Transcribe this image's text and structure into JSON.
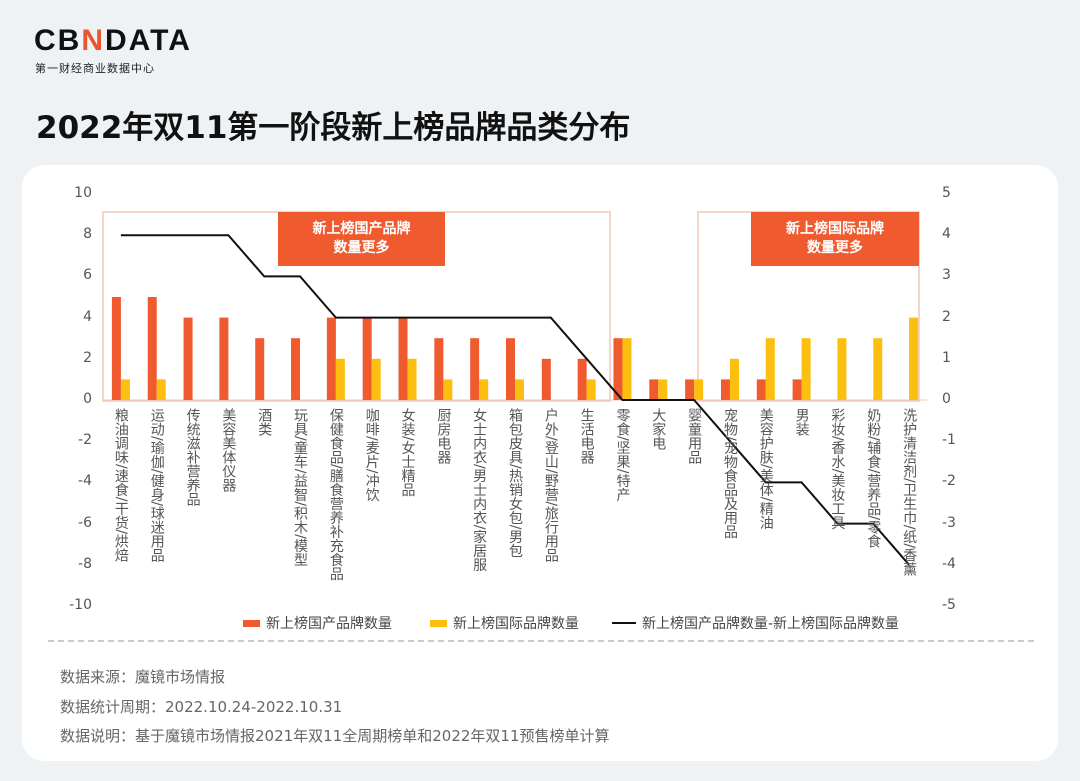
{
  "brand": {
    "logo_pre": "CB",
    "logo_n": "N",
    "logo_post": "DATA",
    "subtitle": "第一财经商业数据中心"
  },
  "title": "2022年双11第一阶段新上榜品牌品类分布",
  "notes": {
    "domestic": "新上榜国产品牌\n数量更多",
    "international": "新上榜国际品牌\n数量更多"
  },
  "legend": [
    "新上榜国产品牌数量",
    "新上榜国际品牌数量",
    "新上榜国产品牌数量-新上榜国际品牌数量"
  ],
  "footer": [
    "数据来源：魔镜市场情报",
    "数据统计周期：2022.10.24-2022.10.31",
    "数据说明：基于魔镜市场情报2021年双11全周期榜单和2022年双11预售榜单计算"
  ],
  "colors": {
    "domestic": "#ef5a2f",
    "international": "#fdbf0f",
    "difference": "#111111",
    "note_bg": "#ef5a2f"
  },
  "chart_data": {
    "type": "bar",
    "categories": [
      "粮油调味/速食/干货/烘焙",
      "运动/瑜伽/健身/球迷用品",
      "传统滋补营养品",
      "美容美体仪器",
      "酒类",
      "玩具/童车/益智/积木/模型",
      "保健食品/膳食营养补充食品",
      "咖啡/麦片/冲饮",
      "女装/女士精品",
      "厨房电器",
      "女士内衣/男士内衣/家居服",
      "箱包皮具/热销女包/男包",
      "户外/登山/野营/旅行用品",
      "生活电器",
      "零食/坚果/特产",
      "大家电",
      "婴童用品",
      "宠物/宠物食品及用品",
      "美容护肤/美体/精油",
      "男装",
      "彩妆/香水/美妆工具",
      "奶粉/辅食/营养品/零食",
      "洗护清洁剂/卫生巾/纸/香薰"
    ],
    "series": [
      {
        "name": "新上榜国产品牌数量",
        "type": "bar",
        "axis": "left",
        "values": [
          5,
          5,
          4,
          4,
          3,
          3,
          4,
          4,
          4,
          3,
          3,
          3,
          2,
          2,
          3,
          1,
          1,
          1,
          1,
          1,
          0,
          0,
          0
        ]
      },
      {
        "name": "新上榜国际品牌数量",
        "type": "bar",
        "axis": "left",
        "values": [
          1,
          1,
          0,
          0,
          0,
          0,
          2,
          2,
          2,
          1,
          1,
          1,
          0,
          1,
          3,
          1,
          1,
          2,
          3,
          3,
          3,
          3,
          4
        ]
      },
      {
        "name": "新上榜国产品牌数量-新上榜国际品牌数量",
        "type": "line",
        "axis": "right",
        "values": [
          4,
          4,
          4,
          4,
          3,
          3,
          2,
          2,
          2,
          2,
          2,
          2,
          2,
          1,
          0,
          0,
          0,
          -1,
          -2,
          -2,
          -3,
          -3,
          -4
        ]
      }
    ],
    "y_left": {
      "range": [
        -10,
        10
      ],
      "ticks": [
        10,
        8,
        6,
        4,
        2,
        0,
        -2,
        -4,
        -6,
        -8,
        -10
      ]
    },
    "y_right": {
      "range": [
        -5,
        5
      ],
      "ticks": [
        5,
        4,
        3,
        2,
        1,
        0,
        -1,
        -2,
        -3,
        -4,
        -5
      ]
    },
    "legend_position": "bottom",
    "grid": false
  }
}
